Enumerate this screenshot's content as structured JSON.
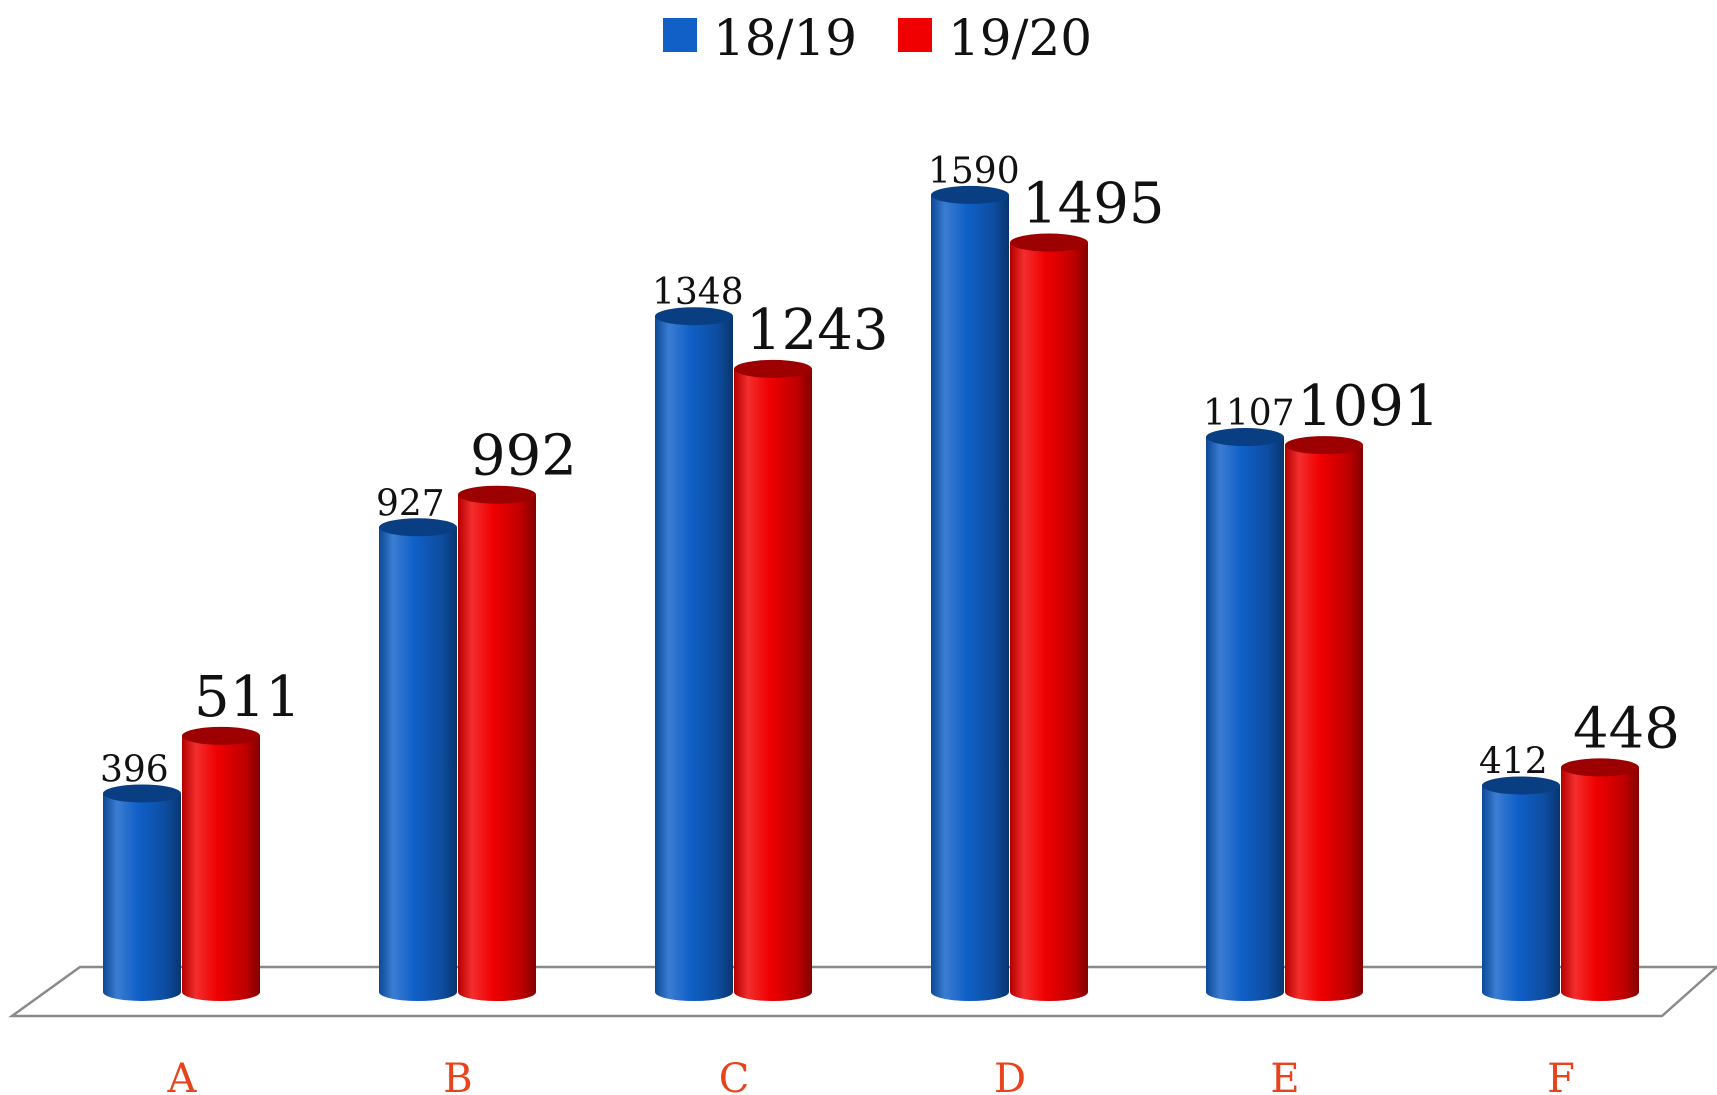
{
  "chart_data": {
    "type": "bar",
    "style": "3d-cylinder",
    "categories": [
      "A",
      "B",
      "C",
      "D",
      "E",
      "F"
    ],
    "series": [
      {
        "name": "18/19",
        "color": "#1060c8",
        "values": [
          396,
          927,
          1348,
          1590,
          1107,
          412
        ]
      },
      {
        "name": "19/20",
        "color": "#f00000",
        "values": [
          511,
          992,
          1243,
          1495,
          1091,
          448
        ]
      }
    ],
    "data_labels": true,
    "legend_position": "top-center",
    "category_label_color": "#e8431c",
    "grid": false,
    "ylim": [
      0,
      1700
    ]
  }
}
